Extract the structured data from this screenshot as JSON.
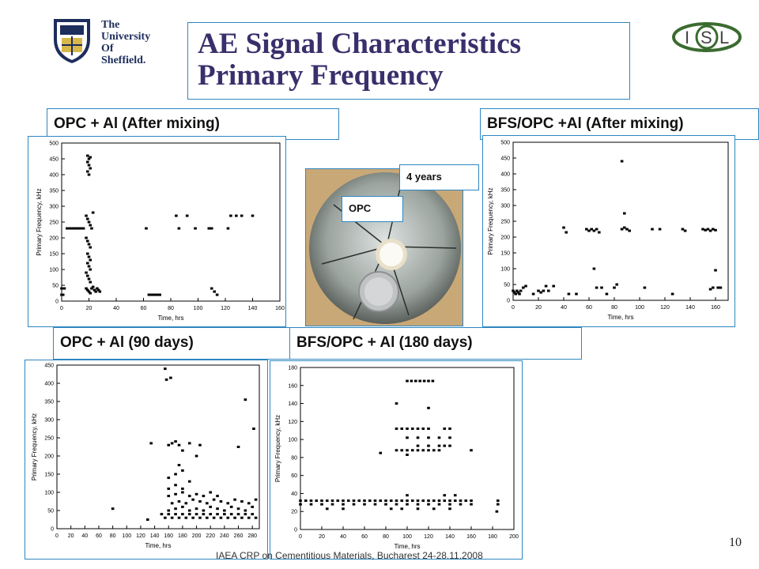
{
  "logo": {
    "lines": [
      "The",
      "University",
      "Of",
      "Sheffield."
    ],
    "isl_letters": [
      "I",
      "S",
      "L"
    ]
  },
  "title": {
    "line1": "AE Signal Characteristics",
    "line2": "Primary Frequency"
  },
  "labels": {
    "tl": "OPC + Al (After mixing)",
    "tr": "BFS/OPC +Al (After mixing)",
    "bl": "OPC + Al (90 days)",
    "br": "BFS/OPC + Al (180 days)"
  },
  "photo": {
    "callout_years": "4 years",
    "callout_opc": "OPC"
  },
  "footer": "IAEA CRP on Cementitious Materials, Bucharest 24-28.11.2008",
  "page_number": "10",
  "colors": {
    "accent_border": "#2e86c1",
    "title": "#3a2f6b",
    "marker": "#000000"
  },
  "chart_data": [
    {
      "type": "scatter",
      "id": "tl",
      "xlabel": "Time, hrs",
      "ylabel": "Primary Frequency, kHz",
      "xlim": [
        0,
        160
      ],
      "ylim": [
        0,
        500
      ],
      "xticks": [
        0,
        20,
        40,
        60,
        80,
        100,
        120,
        140,
        160
      ],
      "yticks": [
        0,
        50,
        100,
        150,
        200,
        250,
        300,
        350,
        400,
        450,
        500
      ],
      "points": [
        [
          0,
          40
        ],
        [
          0,
          20
        ],
        [
          1,
          20
        ],
        [
          2,
          40
        ],
        [
          4,
          230
        ],
        [
          6,
          230
        ],
        [
          8,
          230
        ],
        [
          10,
          230
        ],
        [
          12,
          230
        ],
        [
          14,
          230
        ],
        [
          16,
          230
        ],
        [
          18,
          270
        ],
        [
          19,
          260
        ],
        [
          20,
          250
        ],
        [
          21,
          240
        ],
        [
          22,
          230
        ],
        [
          23,
          280
        ],
        [
          18,
          200
        ],
        [
          19,
          190
        ],
        [
          20,
          180
        ],
        [
          21,
          170
        ],
        [
          19,
          150
        ],
        [
          20,
          140
        ],
        [
          21,
          130
        ],
        [
          19,
          120
        ],
        [
          20,
          110
        ],
        [
          21,
          100
        ],
        [
          18,
          90
        ],
        [
          19,
          80
        ],
        [
          20,
          70
        ],
        [
          21,
          60
        ],
        [
          18,
          40
        ],
        [
          19,
          35
        ],
        [
          20,
          30
        ],
        [
          21,
          25
        ],
        [
          22,
          40
        ],
        [
          23,
          45
        ],
        [
          24,
          35
        ],
        [
          25,
          30
        ],
        [
          26,
          40
        ],
        [
          27,
          35
        ],
        [
          28,
          30
        ],
        [
          19,
          460
        ],
        [
          20,
          450
        ],
        [
          21,
          455
        ],
        [
          19,
          440
        ],
        [
          20,
          430
        ],
        [
          21,
          420
        ],
        [
          19,
          410
        ],
        [
          20,
          400
        ],
        [
          62,
          230
        ],
        [
          64,
          20
        ],
        [
          66,
          20
        ],
        [
          68,
          20
        ],
        [
          70,
          20
        ],
        [
          72,
          20
        ],
        [
          84,
          270
        ],
        [
          86,
          230
        ],
        [
          92,
          270
        ],
        [
          98,
          230
        ],
        [
          108,
          230
        ],
        [
          110,
          230
        ],
        [
          110,
          40
        ],
        [
          112,
          30
        ],
        [
          114,
          20
        ],
        [
          122,
          230
        ],
        [
          124,
          270
        ],
        [
          128,
          270
        ],
        [
          132,
          270
        ],
        [
          140,
          270
        ]
      ]
    },
    {
      "type": "scatter",
      "id": "tr",
      "xlabel": "Time, hrs",
      "ylabel": "Primary Frequency, kHz",
      "xlim": [
        0,
        170
      ],
      "ylim": [
        0,
        500
      ],
      "xticks": [
        0,
        20,
        40,
        60,
        80,
        100,
        120,
        140,
        160
      ],
      "yticks": [
        0,
        50,
        100,
        150,
        200,
        250,
        300,
        350,
        400,
        450,
        500
      ],
      "points": [
        [
          0,
          30
        ],
        [
          1,
          25
        ],
        [
          2,
          20
        ],
        [
          3,
          30
        ],
        [
          4,
          25
        ],
        [
          5,
          20
        ],
        [
          6,
          30
        ],
        [
          8,
          40
        ],
        [
          10,
          45
        ],
        [
          16,
          20
        ],
        [
          20,
          30
        ],
        [
          22,
          25
        ],
        [
          24,
          30
        ],
        [
          26,
          45
        ],
        [
          28,
          30
        ],
        [
          32,
          45
        ],
        [
          40,
          230
        ],
        [
          42,
          215
        ],
        [
          44,
          20
        ],
        [
          50,
          20
        ],
        [
          58,
          225
        ],
        [
          60,
          220
        ],
        [
          62,
          225
        ],
        [
          64,
          220
        ],
        [
          66,
          225
        ],
        [
          68,
          215
        ],
        [
          64,
          100
        ],
        [
          66,
          40
        ],
        [
          70,
          40
        ],
        [
          74,
          20
        ],
        [
          80,
          40
        ],
        [
          82,
          50
        ],
        [
          86,
          440
        ],
        [
          88,
          275
        ],
        [
          86,
          225
        ],
        [
          88,
          230
        ],
        [
          90,
          225
        ],
        [
          92,
          220
        ],
        [
          104,
          40
        ],
        [
          110,
          225
        ],
        [
          116,
          225
        ],
        [
          126,
          20
        ],
        [
          134,
          225
        ],
        [
          136,
          220
        ],
        [
          150,
          225
        ],
        [
          152,
          222
        ],
        [
          154,
          225
        ],
        [
          156,
          220
        ],
        [
          158,
          225
        ],
        [
          160,
          222
        ],
        [
          160,
          95
        ],
        [
          156,
          35
        ],
        [
          158,
          40
        ],
        [
          162,
          40
        ],
        [
          164,
          40
        ]
      ]
    },
    {
      "type": "scatter",
      "id": "bl",
      "xlabel": "Time, hrs",
      "ylabel": "Primary Frequency, kHz",
      "xlim": [
        0,
        290
      ],
      "ylim": [
        0,
        450
      ],
      "xticks": [
        0,
        20,
        40,
        60,
        80,
        100,
        120,
        140,
        160,
        180,
        200,
        220,
        240,
        260,
        280
      ],
      "yticks": [
        0,
        50,
        100,
        150,
        200,
        250,
        300,
        350,
        400,
        450
      ],
      "points": [
        [
          80,
          55
        ],
        [
          130,
          25
        ],
        [
          135,
          235
        ],
        [
          155,
          440
        ],
        [
          157,
          410
        ],
        [
          163,
          415
        ],
        [
          150,
          40
        ],
        [
          160,
          40
        ],
        [
          170,
          40
        ],
        [
          180,
          40
        ],
        [
          190,
          40
        ],
        [
          200,
          40
        ],
        [
          210,
          40
        ],
        [
          220,
          40
        ],
        [
          230,
          40
        ],
        [
          240,
          40
        ],
        [
          250,
          40
        ],
        [
          260,
          40
        ],
        [
          270,
          40
        ],
        [
          280,
          40
        ],
        [
          155,
          30
        ],
        [
          165,
          30
        ],
        [
          175,
          30
        ],
        [
          185,
          30
        ],
        [
          195,
          30
        ],
        [
          205,
          30
        ],
        [
          215,
          30
        ],
        [
          225,
          30
        ],
        [
          235,
          30
        ],
        [
          245,
          30
        ],
        [
          255,
          30
        ],
        [
          265,
          30
        ],
        [
          275,
          30
        ],
        [
          285,
          30
        ],
        [
          160,
          50
        ],
        [
          170,
          55
        ],
        [
          180,
          60
        ],
        [
          190,
          50
        ],
        [
          200,
          55
        ],
        [
          210,
          50
        ],
        [
          220,
          60
        ],
        [
          230,
          55
        ],
        [
          240,
          50
        ],
        [
          250,
          60
        ],
        [
          260,
          55
        ],
        [
          270,
          50
        ],
        [
          280,
          60
        ],
        [
          165,
          70
        ],
        [
          175,
          75
        ],
        [
          185,
          70
        ],
        [
          195,
          80
        ],
        [
          205,
          75
        ],
        [
          215,
          70
        ],
        [
          225,
          80
        ],
        [
          235,
          75
        ],
        [
          245,
          70
        ],
        [
          255,
          80
        ],
        [
          265,
          75
        ],
        [
          275,
          70
        ],
        [
          285,
          80
        ],
        [
          160,
          90
        ],
        [
          170,
          95
        ],
        [
          180,
          100
        ],
        [
          190,
          90
        ],
        [
          200,
          95
        ],
        [
          210,
          90
        ],
        [
          220,
          100
        ],
        [
          230,
          90
        ],
        [
          160,
          110
        ],
        [
          170,
          120
        ],
        [
          180,
          110
        ],
        [
          190,
          130
        ],
        [
          160,
          140
        ],
        [
          170,
          150
        ],
        [
          180,
          160
        ],
        [
          175,
          175
        ],
        [
          160,
          230
        ],
        [
          165,
          235
        ],
        [
          170,
          240
        ],
        [
          175,
          230
        ],
        [
          180,
          215
        ],
        [
          190,
          235
        ],
        [
          200,
          200
        ],
        [
          205,
          230
        ],
        [
          260,
          225
        ],
        [
          270,
          355
        ],
        [
          282,
          275
        ]
      ]
    },
    {
      "type": "scatter",
      "id": "br",
      "xlabel": "Time, hrs",
      "ylabel": "Primary Frequency, kHz",
      "xlim": [
        0,
        200
      ],
      "ylim": [
        0,
        180
      ],
      "xticks": [
        0,
        20,
        40,
        60,
        80,
        100,
        120,
        140,
        160,
        180,
        200
      ],
      "yticks": [
        0,
        20,
        40,
        60,
        80,
        100,
        120,
        140,
        160,
        180
      ],
      "points": [
        [
          0,
          32
        ],
        [
          5,
          32
        ],
        [
          10,
          32
        ],
        [
          15,
          32
        ],
        [
          20,
          32
        ],
        [
          25,
          32
        ],
        [
          30,
          32
        ],
        [
          35,
          32
        ],
        [
          40,
          32
        ],
        [
          45,
          32
        ],
        [
          50,
          32
        ],
        [
          55,
          32
        ],
        [
          60,
          32
        ],
        [
          65,
          32
        ],
        [
          70,
          32
        ],
        [
          75,
          32
        ],
        [
          80,
          32
        ],
        [
          85,
          32
        ],
        [
          90,
          32
        ],
        [
          95,
          32
        ],
        [
          100,
          32
        ],
        [
          105,
          32
        ],
        [
          110,
          32
        ],
        [
          115,
          32
        ],
        [
          120,
          32
        ],
        [
          125,
          32
        ],
        [
          130,
          32
        ],
        [
          135,
          32
        ],
        [
          140,
          32
        ],
        [
          145,
          32
        ],
        [
          150,
          32
        ],
        [
          155,
          32
        ],
        [
          160,
          32
        ],
        [
          0,
          28
        ],
        [
          10,
          28
        ],
        [
          20,
          28
        ],
        [
          30,
          28
        ],
        [
          40,
          28
        ],
        [
          50,
          28
        ],
        [
          60,
          28
        ],
        [
          70,
          28
        ],
        [
          80,
          28
        ],
        [
          90,
          28
        ],
        [
          100,
          28
        ],
        [
          110,
          28
        ],
        [
          120,
          28
        ],
        [
          130,
          28
        ],
        [
          140,
          28
        ],
        [
          150,
          28
        ],
        [
          160,
          28
        ],
        [
          25,
          23
        ],
        [
          40,
          23
        ],
        [
          85,
          23
        ],
        [
          95,
          23
        ],
        [
          110,
          23
        ],
        [
          125,
          23
        ],
        [
          140,
          23
        ],
        [
          185,
          32
        ],
        [
          185,
          28
        ],
        [
          184,
          20
        ],
        [
          75,
          85
        ],
        [
          90,
          140
        ],
        [
          90,
          112
        ],
        [
          95,
          112
        ],
        [
          100,
          112
        ],
        [
          105,
          112
        ],
        [
          110,
          112
        ],
        [
          115,
          112
        ],
        [
          120,
          112
        ],
        [
          135,
          112
        ],
        [
          140,
          112
        ],
        [
          100,
          102
        ],
        [
          110,
          102
        ],
        [
          120,
          102
        ],
        [
          130,
          102
        ],
        [
          140,
          102
        ],
        [
          90,
          88
        ],
        [
          95,
          88
        ],
        [
          100,
          88
        ],
        [
          105,
          88
        ],
        [
          110,
          88
        ],
        [
          115,
          88
        ],
        [
          120,
          88
        ],
        [
          125,
          88
        ],
        [
          130,
          88
        ],
        [
          100,
          83
        ],
        [
          110,
          93
        ],
        [
          120,
          93
        ],
        [
          130,
          93
        ],
        [
          135,
          93
        ],
        [
          140,
          93
        ],
        [
          160,
          88
        ],
        [
          100,
          165
        ],
        [
          104,
          165
        ],
        [
          108,
          165
        ],
        [
          112,
          165
        ],
        [
          116,
          165
        ],
        [
          120,
          165
        ],
        [
          124,
          165
        ],
        [
          120,
          135
        ],
        [
          100,
          38
        ],
        [
          135,
          38
        ],
        [
          145,
          38
        ]
      ]
    }
  ]
}
